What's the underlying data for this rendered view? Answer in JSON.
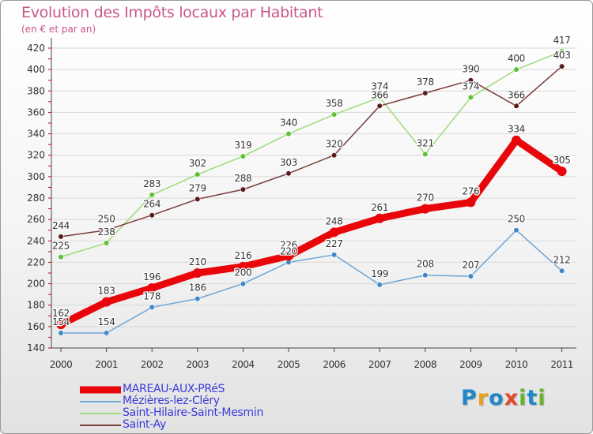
{
  "title": "Evolution des Impôts locaux par Habitant",
  "subtitle": "(en € et par an)",
  "logo": {
    "text": "Proxiti",
    "colors": [
      "#1e88c8",
      "#e8a21a",
      "#66b32e",
      "#e24a2b"
    ]
  },
  "colors": {
    "title": "#c8578a",
    "axis": "#444444",
    "grid": "#d8d8d8",
    "axis_red_ticks": "#cc0000",
    "label_text": "#333333",
    "legend_text": "#3b3bd9"
  },
  "chart_data": {
    "type": "line",
    "title": "Evolution des Impôts locaux par Habitant",
    "subtitle": "(en € et par an)",
    "xlabel": "",
    "ylabel": "",
    "categories": [
      "2000",
      "2001",
      "2002",
      "2003",
      "2004",
      "2005",
      "2006",
      "2007",
      "2008",
      "2009",
      "2010",
      "2011"
    ],
    "ylim": [
      140,
      420
    ],
    "yticks": [
      140,
      160,
      180,
      200,
      220,
      240,
      260,
      280,
      300,
      320,
      340,
      360,
      380,
      400,
      420
    ],
    "grid": true,
    "legend_position": "bottom-left",
    "series": [
      {
        "name": "MAREAU-AUX-PRéS",
        "color": "#e8060a",
        "point": "#e8060a",
        "highlight": true,
        "values": [
          162,
          183,
          196,
          210,
          216,
          226,
          248,
          261,
          270,
          276,
          334,
          305
        ]
      },
      {
        "name": "Mézières-lez-Cléry",
        "color": "#6ea6d6",
        "point": "#3f87c7",
        "highlight": false,
        "values": [
          154,
          154,
          178,
          186,
          200,
          220,
          227,
          199,
          208,
          207,
          250,
          212
        ]
      },
      {
        "name": "Saint-Hilaire-Saint-Mesmin",
        "color": "#9ddc79",
        "point": "#5cc02f",
        "highlight": false,
        "values": [
          225,
          238,
          283,
          302,
          319,
          340,
          358,
          374,
          321,
          374,
          400,
          417
        ]
      },
      {
        "name": "Saint-Ay",
        "color": "#7a3b3b",
        "point": "#5b1b1b",
        "highlight": false,
        "values": [
          244,
          250,
          264,
          279,
          288,
          303,
          320,
          366,
          378,
          390,
          366,
          403
        ]
      }
    ]
  }
}
